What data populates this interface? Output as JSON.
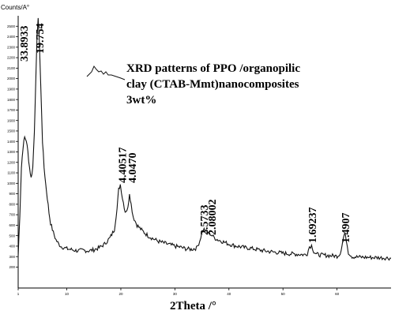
{
  "chart_data": {
    "type": "line",
    "ylabel": "Counts/A°",
    "xlabel": "2Theta /°",
    "xlim": [
      1,
      70
    ],
    "ylim": [
      0,
      2600
    ],
    "x_ticks": [
      "1",
      "10",
      "20",
      "30",
      "40",
      "50",
      "60"
    ],
    "x_tick_values": [
      1,
      10,
      20,
      30,
      40,
      50,
      60
    ],
    "y_ticks": [
      "200",
      "300",
      "400",
      "500",
      "600",
      "700",
      "800",
      "900",
      "1000",
      "1100",
      "1200",
      "1300",
      "1400",
      "1500",
      "1600",
      "1700",
      "1800",
      "1900",
      "2000",
      "2100",
      "2200",
      "2300",
      "2400",
      "2500"
    ],
    "y_tick_values": [
      200,
      300,
      400,
      500,
      600,
      700,
      800,
      900,
      1000,
      1100,
      1200,
      1300,
      1400,
      1500,
      1600,
      1700,
      1800,
      1900,
      2000,
      2100,
      2200,
      2300,
      2400,
      2500
    ],
    "legend_text": "XRD patterns of PPO /organopilic clay (CTAB-Mmt)nanocomposites 3wt%",
    "series": [
      {
        "color": "#111111",
        "points": [
          [
            1.0,
            300
          ],
          [
            1.3,
            700
          ],
          [
            1.6,
            1150
          ],
          [
            1.9,
            1350
          ],
          [
            2.2,
            1440
          ],
          [
            2.5,
            1410
          ],
          [
            2.8,
            1300
          ],
          [
            3.1,
            1150
          ],
          [
            3.4,
            1050
          ],
          [
            3.7,
            1150
          ],
          [
            4.0,
            1500
          ],
          [
            4.3,
            2050
          ],
          [
            4.5,
            2420
          ],
          [
            4.7,
            2560
          ],
          [
            4.9,
            2380
          ],
          [
            5.2,
            1900
          ],
          [
            5.5,
            1400
          ],
          [
            5.8,
            1150
          ],
          [
            6.1,
            990
          ],
          [
            6.4,
            860
          ],
          [
            6.7,
            720
          ],
          [
            7.0,
            620
          ],
          [
            7.5,
            530
          ],
          [
            8.0,
            460
          ],
          [
            8.5,
            420
          ],
          [
            9.0,
            395
          ],
          [
            10,
            375
          ],
          [
            11,
            365
          ],
          [
            12,
            355
          ],
          [
            13,
            360
          ],
          [
            14,
            355
          ],
          [
            15,
            365
          ],
          [
            16,
            385
          ],
          [
            17,
            420
          ],
          [
            18,
            480
          ],
          [
            18.8,
            560
          ],
          [
            19.3,
            760
          ],
          [
            19.6,
            940
          ],
          [
            19.9,
            990
          ],
          [
            20.3,
            860
          ],
          [
            20.8,
            730
          ],
          [
            21.3,
            760
          ],
          [
            21.6,
            910
          ],
          [
            21.9,
            800
          ],
          [
            22.3,
            680
          ],
          [
            23,
            600
          ],
          [
            24,
            545
          ],
          [
            25,
            500
          ],
          [
            26,
            470
          ],
          [
            27,
            445
          ],
          [
            28,
            430
          ],
          [
            29,
            415
          ],
          [
            30,
            400
          ],
          [
            31,
            390
          ],
          [
            32,
            375
          ],
          [
            33,
            370
          ],
          [
            34,
            380
          ],
          [
            34.6,
            450
          ],
          [
            35.0,
            530
          ],
          [
            35.4,
            560
          ],
          [
            35.8,
            540
          ],
          [
            36.2,
            530
          ],
          [
            36.7,
            510
          ],
          [
            37.3,
            480
          ],
          [
            38,
            460
          ],
          [
            39,
            440
          ],
          [
            40,
            420
          ],
          [
            41,
            405
          ],
          [
            42,
            395
          ],
          [
            43,
            385
          ],
          [
            44,
            380
          ],
          [
            45,
            370
          ],
          [
            46,
            360
          ],
          [
            47,
            352
          ],
          [
            48,
            345
          ],
          [
            49,
            340
          ],
          [
            50,
            332
          ],
          [
            51,
            328
          ],
          [
            52,
            325
          ],
          [
            53,
            322
          ],
          [
            54,
            318
          ],
          [
            54.5,
            330
          ],
          [
            54.9,
            395
          ],
          [
            55.3,
            405
          ],
          [
            55.7,
            350
          ],
          [
            56.2,
            322
          ],
          [
            57,
            315
          ],
          [
            58,
            312
          ],
          [
            59,
            308
          ],
          [
            60,
            305
          ],
          [
            60.6,
            330
          ],
          [
            61.1,
            460
          ],
          [
            61.4,
            520
          ],
          [
            61.7,
            470
          ],
          [
            62.1,
            340
          ],
          [
            62.8,
            300
          ],
          [
            64,
            295
          ],
          [
            66,
            292
          ],
          [
            68,
            290
          ],
          [
            70,
            285
          ]
        ]
      }
    ],
    "annotations": [
      "33.8933",
      "19.754",
      "4.40517",
      "4.0470",
      "2.5733",
      "2.08002",
      "1.69237",
      "1.4907"
    ],
    "annotation_x": [
      1.9,
      4.8,
      20.1,
      21.9,
      35.2,
      36.7,
      55.2,
      61.4
    ],
    "grid": false,
    "legend_position": "top-right"
  }
}
